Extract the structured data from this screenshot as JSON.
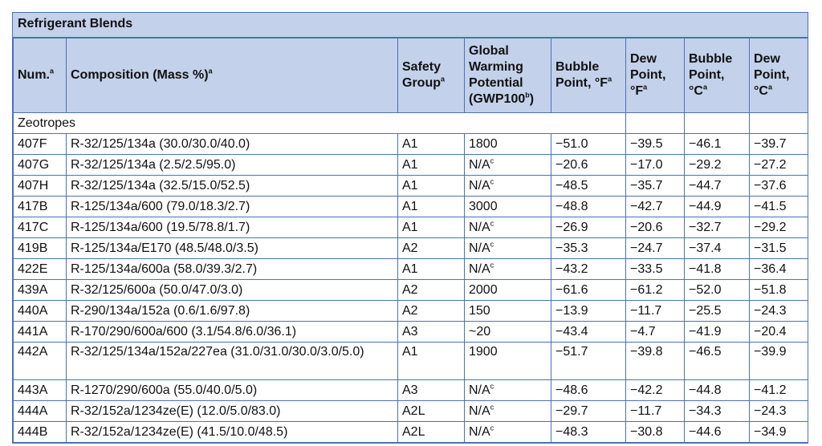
{
  "table": {
    "title": "Refrigerant Blends",
    "headers": [
      {
        "text": "Num.",
        "sup": "a"
      },
      {
        "text": "Composition (Mass %)",
        "sup": "a"
      },
      {
        "text": "Safety Group",
        "sup": "a"
      },
      {
        "text": "Global Warming Potential (GWP100",
        "sup": "b",
        "after": ")"
      },
      {
        "text": "Bubble Point, °F",
        "sup": "a"
      },
      {
        "text": "Dew Point, °F",
        "sup": "a"
      },
      {
        "text": "Bubble Point, °C",
        "sup": "a"
      },
      {
        "text": "Dew Point, °C",
        "sup": "a"
      }
    ],
    "group_label": "Zeotropes",
    "rows": [
      {
        "num": "407F",
        "comp": "R-32/125/134a (30.0/30.0/40.0)",
        "safety": "A1",
        "gwp": "1800",
        "gwp_sup": "",
        "bpf": "−51.0",
        "dpf": "−39.5",
        "bpc": "−46.1",
        "dpc": "−39.7"
      },
      {
        "num": "407G",
        "comp": "R-32/125/134a (2.5/2.5/95.0)",
        "safety": "A1",
        "gwp": "N/A",
        "gwp_sup": "c",
        "bpf": "−20.6",
        "dpf": "−17.0",
        "bpc": "−29.2",
        "dpc": "−27.2"
      },
      {
        "num": "407H",
        "comp": "R-32/125/134a (32.5/15.0/52.5)",
        "safety": "A1",
        "gwp": "N/A",
        "gwp_sup": "c",
        "bpf": "−48.5",
        "dpf": "−35.7",
        "bpc": "−44.7",
        "dpc": "−37.6"
      },
      {
        "num": "417B",
        "comp": "R-125/134a/600 (79.0/18.3/2.7)",
        "safety": "A1",
        "gwp": "3000",
        "gwp_sup": "",
        "bpf": "−48.8",
        "dpf": "−42.7",
        "bpc": "−44.9",
        "dpc": "−41.5"
      },
      {
        "num": "417C",
        "comp": "R-125/134a/600 (19.5/78.8/1.7)",
        "safety": "A1",
        "gwp": "N/A",
        "gwp_sup": "c",
        "bpf": "−26.9",
        "dpf": "−20.6",
        "bpc": "−32.7",
        "dpc": "−29.2"
      },
      {
        "num": "419B",
        "comp": "R-125/134a/E170 (48.5/48.0/3.5)",
        "safety": "A2",
        "gwp": "N/A",
        "gwp_sup": "c",
        "bpf": "−35.3",
        "dpf": "−24.7",
        "bpc": "−37.4",
        "dpc": "−31.5"
      },
      {
        "num": "422E",
        "comp": "R-125/134a/600a (58.0/39.3/2.7)",
        "safety": "A1",
        "gwp": "N/A",
        "gwp_sup": "c",
        "bpf": "−43.2",
        "dpf": "−33.5",
        "bpc": "−41.8",
        "dpc": "−36.4"
      },
      {
        "num": "439A",
        "comp": "R-32/125/600a (50.0/47.0/3.0)",
        "safety": "A2",
        "gwp": "2000",
        "gwp_sup": "",
        "bpf": "−61.6",
        "dpf": "−61.2",
        "bpc": "−52.0",
        "dpc": "−51.8"
      },
      {
        "num": "440A",
        "comp": "R-290/134a/152a (0.6/1.6/97.8)",
        "safety": "A2",
        "gwp": "150",
        "gwp_sup": "",
        "bpf": "−13.9",
        "dpf": "−11.7",
        "bpc": "−25.5",
        "dpc": "−24.3"
      },
      {
        "num": "441A",
        "comp": "R-170/290/600a/600 (3.1/54.8/6.0/36.1)",
        "safety": "A3",
        "gwp": "~20",
        "gwp_sup": "",
        "bpf": "−43.4",
        "dpf": "−4.7",
        "bpc": "−41.9",
        "dpc": "−20.4"
      },
      {
        "num": "442A",
        "comp": "R-32/125/134a/152a/227ea (31.0/31.0/30.0/3.0/5.0)",
        "safety": "A1",
        "gwp": "1900",
        "gwp_sup": "",
        "bpf": "−51.7",
        "dpf": "−39.8",
        "bpc": "−46.5",
        "dpc": "−39.9",
        "tall": true
      },
      {
        "num": "443A",
        "comp": "R-1270/290/600a (55.0/40.0/5.0)",
        "safety": "A3",
        "gwp": "N/A",
        "gwp_sup": "c",
        "bpf": "−48.6",
        "dpf": "−42.2",
        "bpc": "−44.8",
        "dpc": "−41.2"
      },
      {
        "num": "444A",
        "comp": "R-32/152a/1234ze(E) (12.0/5.0/83.0)",
        "safety": "A2L",
        "gwp": "N/A",
        "gwp_sup": "c",
        "bpf": "−29.7",
        "dpf": "−11.7",
        "bpc": "−34.3",
        "dpc": "−24.3"
      },
      {
        "num": "444B",
        "comp": "R-32/152a/1234ze(E) (41.5/10.0/48.5)",
        "safety": "A2L",
        "gwp": "N/A",
        "gwp_sup": "c",
        "bpf": "−48.3",
        "dpf": "−30.8",
        "bpc": "−44.6",
        "dpc": "−34.9"
      }
    ]
  }
}
